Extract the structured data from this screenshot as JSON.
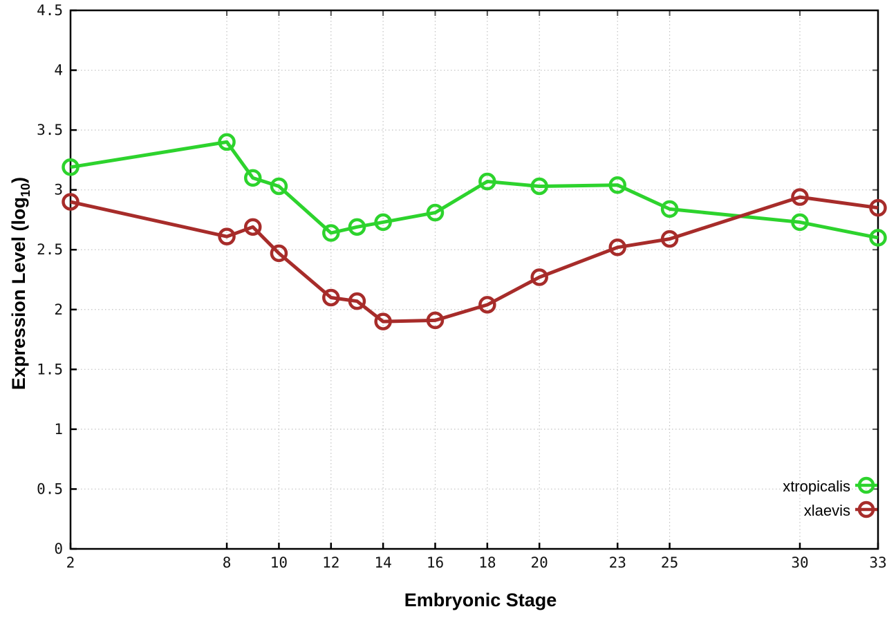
{
  "chart_data": {
    "type": "line",
    "title": "",
    "xlabel": "Embryonic Stage",
    "ylabel": {
      "pre": "Expression Level (log",
      "sub": "10",
      "post": ")"
    },
    "xlim": [
      2,
      33
    ],
    "ylim": [
      0,
      4.5
    ],
    "grid": true,
    "legend_position": "bottom-right",
    "x": [
      2,
      8,
      9,
      10,
      12,
      13,
      14,
      16,
      18,
      20,
      23,
      25,
      30,
      33
    ],
    "xticks": [
      2,
      8,
      10,
      12,
      14,
      16,
      18,
      20,
      23,
      25,
      30,
      33
    ],
    "yticks": [
      0,
      0.5,
      1,
      1.5,
      2,
      2.5,
      3,
      3.5,
      4,
      4.5
    ],
    "ytick_labels": [
      "0",
      "0.5",
      "1",
      "1.5",
      "2",
      "2.5",
      "3",
      "3.5",
      "4",
      "4.5"
    ],
    "series": [
      {
        "name": "xtropicalis",
        "color": "#2dd32d",
        "values": [
          3.19,
          3.4,
          3.1,
          3.03,
          2.64,
          2.69,
          2.73,
          2.81,
          3.07,
          3.03,
          3.04,
          2.84,
          2.73,
          2.6
        ]
      },
      {
        "name": "xlaevis",
        "color": "#a72c2a",
        "values": [
          2.9,
          2.61,
          2.69,
          2.47,
          2.1,
          2.07,
          1.9,
          1.91,
          2.04,
          2.27,
          2.52,
          2.59,
          2.94,
          2.85
        ]
      }
    ]
  },
  "colors": {
    "background": "#ffffff",
    "axis": "#000000",
    "gridline": "#c2c2c2",
    "xtropicalis": "#2dd32d",
    "xlaevis": "#a72c2a"
  }
}
